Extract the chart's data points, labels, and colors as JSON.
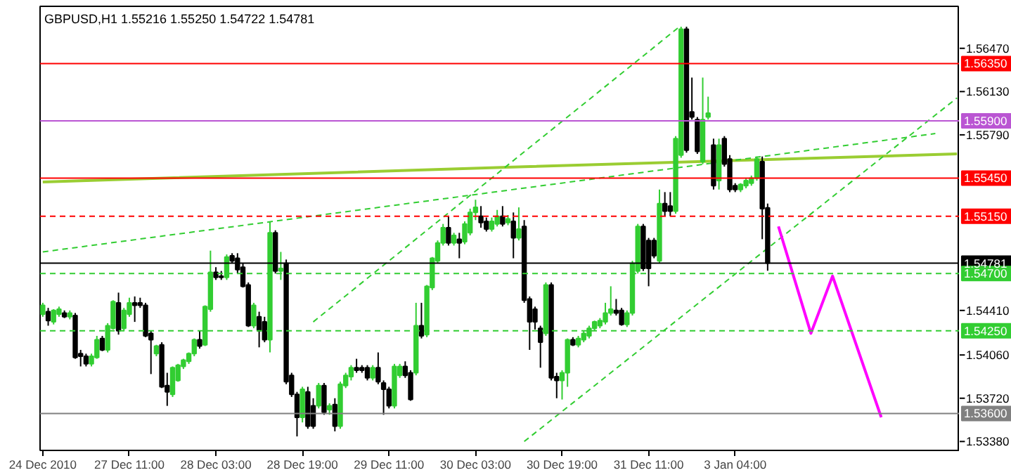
{
  "chart_data": {
    "type": "candlestick",
    "title": "GBPUSD,H1  1.55216 1.55250 1.54722 1.54781",
    "categories": [
      "24 Dec 2010",
      null,
      null,
      null,
      null,
      null,
      null,
      null,
      null,
      null,
      null,
      null,
      null,
      null,
      null,
      null,
      "27 Dec 11:00",
      null,
      null,
      null,
      null,
      null,
      null,
      null,
      null,
      null,
      null,
      null,
      null,
      null,
      null,
      null,
      "28 Dec 03:00",
      null,
      null,
      null,
      null,
      null,
      null,
      null,
      null,
      null,
      null,
      null,
      null,
      null,
      null,
      null,
      "28 Dec 19:00",
      null,
      null,
      null,
      null,
      null,
      null,
      null,
      null,
      null,
      null,
      null,
      null,
      null,
      null,
      null,
      "29 Dec 11:00",
      null,
      null,
      null,
      null,
      null,
      null,
      null,
      null,
      null,
      null,
      null,
      null,
      null,
      null,
      null,
      "30 Dec 03:00",
      null,
      null,
      null,
      null,
      null,
      null,
      null,
      null,
      null,
      null,
      null,
      null,
      null,
      null,
      null,
      "30 Dec 19:00",
      null,
      null,
      null,
      null,
      null,
      null,
      null,
      null,
      null,
      null,
      null,
      null,
      null,
      null,
      null,
      "31 Dec 11:00",
      null,
      null,
      null,
      null,
      null,
      null,
      null,
      null,
      null,
      null,
      null,
      null,
      null,
      null,
      null,
      "3 Jan 04:00",
      null,
      null,
      null,
      null,
      null,
      null,
      null,
      null,
      null,
      null,
      null,
      null,
      null,
      null,
      null,
      null,
      null,
      null,
      null,
      null,
      null,
      null,
      null,
      null,
      null,
      null,
      null,
      null,
      null,
      null,
      null,
      null,
      null,
      null,
      null,
      null,
      null,
      null,
      null,
      null,
      null
    ],
    "ohlc": [
      [
        1.5438,
        1.5447,
        1.5436,
        1.5445
      ],
      [
        1.544,
        1.5443,
        1.5429,
        1.5433
      ],
      [
        1.5432,
        1.5442,
        1.543,
        1.5441
      ],
      [
        1.5438,
        1.5444,
        1.5436,
        1.5442
      ],
      [
        1.5439,
        1.5441,
        1.5435,
        1.5436
      ],
      [
        1.5436,
        1.5441,
        1.5434,
        1.5439
      ],
      [
        1.5437,
        1.5439,
        1.5403,
        1.5404
      ],
      [
        1.5407,
        1.541,
        1.5397,
        1.5405
      ],
      [
        1.5405,
        1.5407,
        1.5397,
        1.5399
      ],
      [
        1.5399,
        1.5407,
        1.5397,
        1.5405
      ],
      [
        1.5404,
        1.5421,
        1.5403,
        1.5418
      ],
      [
        1.5419,
        1.5421,
        1.5409,
        1.541
      ],
      [
        1.541,
        1.5431,
        1.5408,
        1.5429
      ],
      [
        1.5427,
        1.5449,
        1.5426,
        1.5448
      ],
      [
        1.5447,
        1.5455,
        1.5422,
        1.5425
      ],
      [
        1.5427,
        1.5443,
        1.5425,
        1.5441
      ],
      [
        1.5438,
        1.5451,
        1.5436,
        1.5447
      ],
      [
        1.5447,
        1.5452,
        1.5432,
        1.5445
      ],
      [
        1.5447,
        1.5451,
        1.5443,
        1.5445
      ],
      [
        1.5445,
        1.5447,
        1.542,
        1.5421
      ],
      [
        1.5423,
        1.5425,
        1.5391,
        1.5418
      ],
      [
        1.5407,
        1.5414,
        1.5405,
        1.5413
      ],
      [
        1.5414,
        1.5416,
        1.538,
        1.5381
      ],
      [
        1.5382,
        1.5392,
        1.5366,
        1.5377
      ],
      [
        1.5375,
        1.5397,
        1.5373,
        1.5396
      ],
      [
        1.5386,
        1.5399,
        1.5385,
        1.5398
      ],
      [
        1.5397,
        1.5403,
        1.5395,
        1.5402
      ],
      [
        1.5401,
        1.5408,
        1.5399,
        1.5407
      ],
      [
        1.5407,
        1.5419,
        1.5405,
        1.5418
      ],
      [
        1.5418,
        1.5425,
        1.5411,
        1.5413
      ],
      [
        1.5414,
        1.5445,
        1.5413,
        1.5444
      ],
      [
        1.5442,
        1.5488,
        1.544,
        1.5471
      ],
      [
        1.5471,
        1.5475,
        1.5465,
        1.5467
      ],
      [
        1.5468,
        1.5472,
        1.5465,
        1.5467
      ],
      [
        1.5467,
        1.5485,
        1.5465,
        1.5483
      ],
      [
        1.5484,
        1.5486,
        1.5478,
        1.548
      ],
      [
        1.5482,
        1.5486,
        1.547,
        1.5473
      ],
      [
        1.5475,
        1.5478,
        1.5459,
        1.546
      ],
      [
        1.5461,
        1.5463,
        1.5428,
        1.5429
      ],
      [
        1.5429,
        1.5447,
        1.5427,
        1.5445
      ],
      [
        1.5436,
        1.544,
        1.5412,
        1.5425
      ],
      [
        1.5432,
        1.5436,
        1.5416,
        1.5418
      ],
      [
        1.5418,
        1.5511,
        1.5408,
        1.5502
      ],
      [
        1.5502,
        1.5504,
        1.547,
        1.5472
      ],
      [
        1.5472,
        1.5487,
        1.5465,
        1.5474
      ],
      [
        1.5478,
        1.5481,
        1.5383,
        1.5385
      ],
      [
        1.539,
        1.5392,
        1.5373,
        1.5375
      ],
      [
        1.5375,
        1.5377,
        1.5342,
        1.5357
      ],
      [
        1.5357,
        1.5381,
        1.5353,
        1.5379
      ],
      [
        1.5377,
        1.5381,
        1.5348,
        1.535
      ],
      [
        1.5366,
        1.5372,
        1.5348,
        1.535
      ],
      [
        1.5366,
        1.5384,
        1.5364,
        1.5382
      ],
      [
        1.5382,
        1.5384,
        1.5359,
        1.5361
      ],
      [
        1.5363,
        1.5368,
        1.5359,
        1.5366
      ],
      [
        1.5367,
        1.5372,
        1.5346,
        1.535
      ],
      [
        1.535,
        1.5385,
        1.5348,
        1.5383
      ],
      [
        1.5382,
        1.5392,
        1.538,
        1.539
      ],
      [
        1.5389,
        1.5398,
        1.5386,
        1.5396
      ],
      [
        1.5396,
        1.5403,
        1.5392,
        1.5394
      ],
      [
        1.5396,
        1.5398,
        1.5392,
        1.5394
      ],
      [
        1.5396,
        1.5398,
        1.5386,
        1.5388
      ],
      [
        1.5388,
        1.5398,
        1.5386,
        1.5396
      ],
      [
        1.5396,
        1.5408,
        1.5383,
        1.5385
      ],
      [
        1.5384,
        1.5386,
        1.5359,
        1.5379
      ],
      [
        1.5379,
        1.5381,
        1.5364,
        1.5366
      ],
      [
        1.5366,
        1.5399,
        1.5364,
        1.5397
      ],
      [
        1.539,
        1.5399,
        1.5388,
        1.5397
      ],
      [
        1.5397,
        1.5401,
        1.5388,
        1.539
      ],
      [
        1.5392,
        1.5394,
        1.537,
        1.5371
      ],
      [
        1.5392,
        1.5447,
        1.539,
        1.5429
      ],
      [
        1.5429,
        1.5447,
        1.5419,
        1.5421
      ],
      [
        1.5422,
        1.5461,
        1.542,
        1.546
      ],
      [
        1.5459,
        1.5483,
        1.5457,
        1.5482
      ],
      [
        1.548,
        1.5496,
        1.5478,
        1.5494
      ],
      [
        1.5494,
        1.5509,
        1.5492,
        1.5506
      ],
      [
        1.5506,
        1.5515,
        1.5492,
        1.5494
      ],
      [
        1.5494,
        1.5502,
        1.5492,
        1.55
      ],
      [
        1.5497,
        1.5502,
        1.5482,
        1.5494
      ],
      [
        1.5495,
        1.5511,
        1.5493,
        1.5509
      ],
      [
        1.5502,
        1.5521,
        1.55,
        1.5518
      ],
      [
        1.5518,
        1.5528,
        1.5512,
        1.5522
      ],
      [
        1.5515,
        1.5523,
        1.5506,
        1.551
      ],
      [
        1.5511,
        1.5514,
        1.5503,
        1.5505
      ],
      [
        1.5505,
        1.5514,
        1.5503,
        1.5511
      ],
      [
        1.5509,
        1.552,
        1.5507,
        1.5515
      ],
      [
        1.5515,
        1.5523,
        1.5507,
        1.5509
      ],
      [
        1.551,
        1.5516,
        1.5508,
        1.5513
      ],
      [
        1.5511,
        1.5518,
        1.5482,
        1.5498
      ],
      [
        1.5498,
        1.5522,
        1.5496,
        1.5505
      ],
      [
        1.5507,
        1.5512,
        1.5447,
        1.5449
      ],
      [
        1.545,
        1.5452,
        1.541,
        1.5432
      ],
      [
        1.5442,
        1.5444,
        1.5426,
        1.5432
      ],
      [
        1.5427,
        1.5429,
        1.5396,
        1.5416
      ],
      [
        1.5423,
        1.5463,
        1.5421,
        1.5461
      ],
      [
        1.5461,
        1.5463,
        1.5386,
        1.5388
      ],
      [
        1.5389,
        1.5392,
        1.5372,
        1.5386
      ],
      [
        1.5386,
        1.5394,
        1.5371,
        1.5392
      ],
      [
        1.5392,
        1.5419,
        1.5381,
        1.5418
      ],
      [
        1.5418,
        1.542,
        1.5413,
        1.5414
      ],
      [
        1.5414,
        1.5421,
        1.5412,
        1.5419
      ],
      [
        1.5418,
        1.5425,
        1.5416,
        1.5423
      ],
      [
        1.5421,
        1.5429,
        1.5419,
        1.5427
      ],
      [
        1.5427,
        1.5433,
        1.5425,
        1.5432
      ],
      [
        1.5429,
        1.5435,
        1.5427,
        1.5433
      ],
      [
        1.5432,
        1.5447,
        1.543,
        1.5439
      ],
      [
        1.5439,
        1.546,
        1.5437,
        1.5442
      ],
      [
        1.5441,
        1.545,
        1.5437,
        1.5439
      ],
      [
        1.5441,
        1.5443,
        1.5429,
        1.543
      ],
      [
        1.543,
        1.5441,
        1.5428,
        1.5439
      ],
      [
        1.5439,
        1.548,
        1.5437,
        1.5478
      ],
      [
        1.5472,
        1.5509,
        1.547,
        1.5507
      ],
      [
        1.5507,
        1.5509,
        1.5472,
        1.5474
      ],
      [
        1.5496,
        1.5498,
        1.546,
        1.5474
      ],
      [
        1.5496,
        1.5498,
        1.5482,
        1.5484
      ],
      [
        1.548,
        1.5536,
        1.5478,
        1.5525
      ],
      [
        1.5525,
        1.5534,
        1.5515,
        1.5519
      ],
      [
        1.5523,
        1.5534,
        1.5515,
        1.5519
      ],
      [
        1.5519,
        1.5578,
        1.5517,
        1.5576
      ],
      [
        1.5563,
        1.5664,
        1.5561,
        1.5662
      ],
      [
        1.5662,
        1.5664,
        1.5565,
        1.5567
      ],
      [
        1.5597,
        1.5624,
        1.5591,
        1.5593
      ],
      [
        1.5591,
        1.5593,
        1.5564,
        1.5566
      ],
      [
        1.5558,
        1.5624,
        1.5556,
        1.5591
      ],
      [
        1.5593,
        1.5609,
        1.5591,
        1.5596
      ],
      [
        1.5571,
        1.5576,
        1.5536,
        1.5539
      ],
      [
        1.5543,
        1.5576,
        1.5536,
        1.5571
      ],
      [
        1.5576,
        1.5578,
        1.5554,
        1.5556
      ],
      [
        1.556,
        1.5563,
        1.5534,
        1.5536
      ],
      [
        1.5539,
        1.5541,
        1.5534,
        1.5536
      ],
      [
        1.5536,
        1.5541,
        1.5534,
        1.554
      ],
      [
        1.5539,
        1.5545,
        1.5537,
        1.5543
      ],
      [
        1.5541,
        1.5547,
        1.5539,
        1.5545
      ],
      [
        1.5545,
        1.5562,
        1.5543,
        1.556
      ],
      [
        1.5558,
        1.5562,
        1.5497,
        1.5521
      ],
      [
        1.55216,
        1.5525,
        1.54722,
        1.54781
      ],
      null,
      null,
      null,
      null,
      null,
      null,
      null,
      null,
      null,
      null,
      null,
      null,
      null,
      null,
      null,
      null,
      null,
      null,
      null,
      null,
      null,
      null,
      null,
      null,
      null,
      null,
      null,
      null,
      null,
      null,
      null,
      null,
      null,
      null,
      null
    ],
    "ylim": [
      1.5331,
      1.568
    ],
    "yticks": [
      {
        "value": 1.5338,
        "label": "1.53380"
      },
      {
        "value": 1.5372,
        "label": "1.53720"
      },
      {
        "value": 1.5406,
        "label": "1.54060"
      },
      {
        "value": 1.5441,
        "label": "1.54410"
      },
      {
        "value": 1.5579,
        "label": "1.55790"
      },
      {
        "value": 1.5613,
        "label": "1.56130"
      },
      {
        "value": 1.5647,
        "label": "1.56470"
      }
    ],
    "series": [
      {
        "type": "line",
        "color": "#9acd32",
        "values": [
          1.5542,
          null,
          null,
          null,
          null,
          null,
          null,
          null,
          null,
          null,
          null,
          null,
          null,
          null,
          null,
          null,
          null,
          null,
          null,
          null,
          null,
          null,
          null,
          null,
          null,
          null,
          null,
          null,
          null,
          null,
          null,
          null,
          null,
          null,
          null,
          null,
          null,
          null,
          null,
          null,
          null,
          null,
          null,
          null,
          null,
          null,
          null,
          null,
          null,
          null,
          null,
          null,
          null,
          null,
          null,
          null,
          null,
          null,
          null,
          null,
          null,
          null,
          null,
          null,
          null,
          null,
          null,
          null,
          null,
          null,
          null,
          null,
          null,
          null,
          null,
          null,
          null,
          null,
          null,
          null,
          null,
          null,
          null,
          null,
          null,
          null,
          null,
          null,
          null,
          1.5554,
          null,
          null,
          null,
          null,
          null,
          null,
          null,
          null,
          null,
          null,
          null,
          null,
          null,
          null,
          null,
          null,
          null,
          null,
          null,
          null,
          null,
          null,
          null,
          null,
          null,
          null,
          null,
          null,
          null,
          null,
          null,
          null,
          null,
          null,
          null,
          null,
          null,
          null,
          null,
          null,
          null,
          null,
          null,
          null,
          null,
          null,
          null,
          null,
          null,
          null,
          null,
          null,
          null,
          null,
          null,
          null,
          null,
          null,
          null,
          null,
          null,
          null,
          null,
          null,
          null,
          null,
          null,
          null,
          null,
          null,
          null,
          null,
          null,
          null,
          null,
          null,
          null,
          null,
          null,
          1.5564
        ]
      },
      {
        "type": "line",
        "color": "#32cd32",
        "line_style": "dashed",
        "values": [
          1.5487,
          null,
          null,
          null,
          null,
          null,
          null,
          null,
          null,
          null,
          null,
          null,
          null,
          null,
          null,
          null,
          null,
          null,
          null,
          null,
          null,
          null,
          null,
          null,
          null,
          null,
          null,
          null,
          null,
          null,
          null,
          null,
          null,
          null,
          null,
          null,
          null,
          null,
          null,
          null,
          null,
          null,
          null,
          null,
          null,
          null,
          null,
          null,
          null,
          null,
          null,
          null,
          null,
          null,
          null,
          null,
          null,
          null,
          null,
          null,
          null,
          null,
          null,
          null,
          null,
          null,
          null,
          null,
          null,
          null,
          null,
          null,
          null,
          null,
          null,
          null,
          null,
          null,
          null,
          null,
          null,
          null,
          null,
          null,
          null,
          null,
          null,
          null,
          null,
          null,
          null,
          null,
          null,
          null,
          null,
          null,
          null,
          null,
          null,
          null,
          null,
          null,
          null,
          null,
          null,
          null,
          null,
          null,
          null,
          null,
          null,
          null,
          null,
          null,
          null,
          null,
          null,
          null,
          null,
          null,
          null,
          null,
          null,
          null,
          null,
          null,
          null,
          null,
          null,
          null,
          null,
          null,
          null,
          null,
          null,
          null,
          null,
          null,
          null,
          null,
          null,
          null,
          null,
          null,
          null,
          null,
          null,
          null,
          null,
          null,
          null,
          null,
          null,
          null,
          null,
          null,
          null,
          null,
          null,
          null,
          null,
          null,
          null,
          null,
          null,
          1.558,
          null,
          null,
          null,
          null
        ]
      },
      {
        "type": "line",
        "color": "#32cd32",
        "line_style": "dashed",
        "values": [
          null,
          null,
          null,
          null,
          null,
          null,
          null,
          null,
          null,
          null,
          null,
          null,
          null,
          null,
          null,
          null,
          null,
          null,
          null,
          null,
          null,
          null,
          null,
          null,
          null,
          null,
          null,
          null,
          null,
          null,
          null,
          null,
          null,
          null,
          null,
          null,
          null,
          null,
          null,
          null,
          null,
          null,
          null,
          null,
          null,
          null,
          null,
          null,
          null,
          null,
          1.5432,
          null,
          null,
          null,
          null,
          null,
          null,
          null,
          null,
          null,
          null,
          null,
          null,
          null,
          null,
          null,
          null,
          null,
          null,
          null,
          null,
          null,
          null,
          null,
          null,
          null,
          null,
          null,
          null,
          null,
          null,
          null,
          null,
          null,
          null,
          null,
          null,
          null,
          null,
          null,
          null,
          null,
          null,
          null,
          null,
          null,
          null,
          null,
          null,
          null,
          null,
          null,
          null,
          null,
          null,
          null,
          null,
          null,
          null,
          null,
          null,
          null,
          null,
          null,
          null,
          null,
          null,
          null,
          1.5665,
          null,
          null,
          null,
          null,
          null,
          null,
          null,
          null,
          null,
          null,
          null,
          null,
          null,
          null,
          null,
          null,
          null,
          null,
          null,
          null,
          null,
          null,
          null,
          null,
          null,
          null,
          null,
          null,
          null,
          null,
          null,
          null,
          null,
          null,
          null,
          null,
          null,
          null,
          null,
          null,
          null,
          null,
          null,
          null,
          null,
          null,
          null,
          null,
          null,
          null,
          null
        ]
      },
      {
        "type": "line",
        "color": "#32cd32",
        "line_style": "dashed",
        "values": [
          null,
          null,
          null,
          null,
          null,
          null,
          null,
          null,
          null,
          null,
          null,
          null,
          null,
          null,
          null,
          null,
          null,
          null,
          null,
          null,
          null,
          null,
          null,
          null,
          null,
          null,
          null,
          null,
          null,
          null,
          null,
          null,
          null,
          null,
          null,
          null,
          null,
          null,
          null,
          null,
          null,
          null,
          null,
          null,
          null,
          null,
          null,
          null,
          null,
          null,
          null,
          null,
          null,
          null,
          null,
          null,
          null,
          null,
          null,
          null,
          null,
          null,
          null,
          null,
          null,
          null,
          null,
          null,
          null,
          null,
          null,
          null,
          null,
          null,
          null,
          null,
          null,
          null,
          null,
          null,
          null,
          null,
          null,
          null,
          null,
          null,
          null,
          null,
          null,
          1.5338,
          null,
          null,
          null,
          null,
          null,
          null,
          null,
          null,
          null,
          null,
          null,
          null,
          null,
          null,
          null,
          null,
          null,
          null,
          null,
          null,
          null,
          null,
          null,
          null,
          null,
          null,
          null,
          null,
          null,
          null,
          null,
          null,
          null,
          null,
          null,
          null,
          null,
          null,
          null,
          null,
          null,
          null,
          null,
          null,
          null,
          null,
          null,
          null,
          null,
          null,
          null,
          null,
          null,
          null,
          null,
          null,
          null,
          null,
          null,
          null,
          null,
          null,
          null,
          null,
          null,
          null,
          null,
          null,
          null,
          null,
          null,
          null,
          null,
          null,
          null,
          null,
          null,
          null,
          null,
          1.5608
        ]
      },
      {
        "type": "line",
        "color": "#ff00ff",
        "values": [
          null,
          null,
          null,
          null,
          null,
          null,
          null,
          null,
          null,
          null,
          null,
          null,
          null,
          null,
          null,
          null,
          null,
          null,
          null,
          null,
          null,
          null,
          null,
          null,
          null,
          null,
          null,
          null,
          null,
          null,
          null,
          null,
          null,
          null,
          null,
          null,
          null,
          null,
          null,
          null,
          null,
          null,
          null,
          null,
          null,
          null,
          null,
          null,
          null,
          null,
          null,
          null,
          null,
          null,
          null,
          null,
          null,
          null,
          null,
          null,
          null,
          null,
          null,
          null,
          null,
          null,
          null,
          null,
          null,
          null,
          null,
          null,
          null,
          null,
          null,
          null,
          null,
          null,
          null,
          null,
          null,
          null,
          null,
          null,
          null,
          null,
          null,
          null,
          null,
          null,
          null,
          null,
          null,
          null,
          null,
          null,
          null,
          null,
          null,
          null,
          null,
          null,
          null,
          null,
          null,
          null,
          null,
          null,
          null,
          null,
          null,
          null,
          null,
          null,
          null,
          null,
          null,
          null,
          null,
          null,
          null,
          null,
          null,
          null,
          null,
          null,
          null,
          null,
          null,
          null,
          null,
          null,
          null,
          null,
          null,
          null,
          1.5507,
          null,
          null,
          null,
          null,
          null,
          1.5423,
          null,
          null,
          null,
          1.5468,
          null,
          null,
          null,
          null,
          null,
          null,
          null,
          null,
          1.5357,
          null,
          null,
          null,
          null,
          null,
          null,
          null,
          null,
          null,
          null,
          null,
          null,
          null,
          null
        ]
      }
    ],
    "ref_lines": [
      {
        "axis": "y",
        "value": 1.5635,
        "label": "1.56350",
        "color": "#ff0000"
      },
      {
        "axis": "y",
        "value": 1.559,
        "label": "1.55900",
        "color": "#ba55d3"
      },
      {
        "axis": "y",
        "value": 1.5545,
        "label": "1.55450",
        "color": "#ff0000"
      },
      {
        "axis": "y",
        "value": 1.5515,
        "label": "1.55150",
        "color": "#ff0000",
        "line_style": "dashed"
      },
      {
        "axis": "y",
        "value": 1.54781,
        "label": "1.54781",
        "color": "#000000"
      },
      {
        "axis": "y",
        "value": 1.547,
        "label": "1.54700",
        "color": "#32cd32",
        "line_style": "dashed"
      },
      {
        "axis": "y",
        "value": 1.5425,
        "label": "1.54250",
        "color": "#32cd32",
        "line_style": "dashed"
      },
      {
        "axis": "y",
        "value": 1.536,
        "label": "1.53600",
        "color": "#808080"
      }
    ],
    "grid": false
  }
}
